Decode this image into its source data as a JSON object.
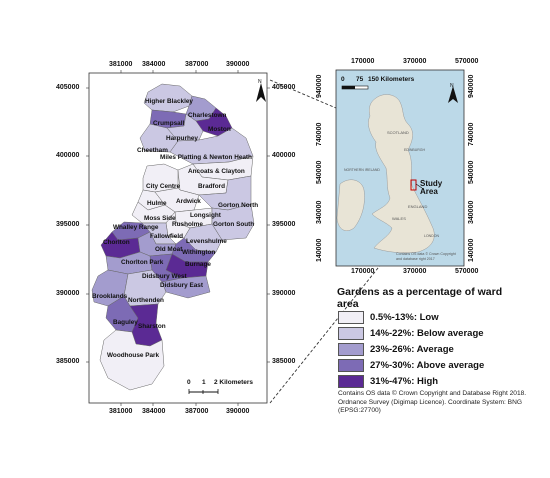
{
  "main_map": {
    "x_ticks": [
      "381000",
      "384000",
      "387000",
      "390000"
    ],
    "y_ticks_left": [
      "405000",
      "400000",
      "395000",
      "390000",
      "385000"
    ],
    "y_ticks_right": [
      "405000",
      "400000",
      "395000",
      "390000",
      "385000"
    ],
    "north_label": "N",
    "scale_labels": [
      "0",
      "1",
      "2 Kilometers"
    ],
    "wards": [
      {
        "name": "Higher Blackley",
        "class": 1
      },
      {
        "name": "Charlestown",
        "class": 2
      },
      {
        "name": "Crumpsall",
        "class": 3
      },
      {
        "name": "Moston",
        "class": 4
      },
      {
        "name": "Harpurhey",
        "class": 1
      },
      {
        "name": "Cheetham",
        "class": 1
      },
      {
        "name": "Miles Platting & Newton Heath",
        "class": 1
      },
      {
        "name": "Ancoats & Clayton",
        "class": 0
      },
      {
        "name": "City Centre",
        "class": 0
      },
      {
        "name": "Bradford",
        "class": 0
      },
      {
        "name": "Hulme",
        "class": 0
      },
      {
        "name": "Ardwick",
        "class": 0
      },
      {
        "name": "Gorton North",
        "class": 1
      },
      {
        "name": "Longsight",
        "class": 0
      },
      {
        "name": "Moss Side",
        "class": 0
      },
      {
        "name": "Rusholme",
        "class": 0
      },
      {
        "name": "Gorton South",
        "class": 1
      },
      {
        "name": "Whalley Range",
        "class": 3
      },
      {
        "name": "Fallowfield",
        "class": 1
      },
      {
        "name": "Chorlton",
        "class": 4
      },
      {
        "name": "Levenshulme",
        "class": 1
      },
      {
        "name": "Old Moat",
        "class": 2
      },
      {
        "name": "Withington",
        "class": 3
      },
      {
        "name": "Chorlton Park",
        "class": 2
      },
      {
        "name": "Burnage",
        "class": 4
      },
      {
        "name": "Didsbury West",
        "class": 3
      },
      {
        "name": "Didsbury East",
        "class": 2
      },
      {
        "name": "Brooklands",
        "class": 2
      },
      {
        "name": "Northenden",
        "class": 1
      },
      {
        "name": "Baguley",
        "class": 3
      },
      {
        "name": "Sharston",
        "class": 4
      },
      {
        "name": "Woodhouse Park",
        "class": 0
      }
    ]
  },
  "inset_map": {
    "x_ticks": [
      "170000",
      "370000",
      "570000"
    ],
    "y_ticks": [
      "940000",
      "740000",
      "540000",
      "340000",
      "140000"
    ],
    "scale_labels": [
      "0",
      "75",
      "150 Kilometers"
    ],
    "north_label": "N",
    "study_area_label": "Study Area",
    "place_labels": [
      "SCOTLAND",
      "NORTHERN IRELAND",
      "ENGLAND",
      "WALES",
      "EDINBURGH",
      "LONDON"
    ],
    "attribution": "Contains OS data © Crown Copyright and database right 2017"
  },
  "legend": {
    "title": "Gardens as a percentage of ward area",
    "items": [
      {
        "label": "0.5%-13%: Low",
        "color": "#f1eff6"
      },
      {
        "label": "14%-22%: Below average",
        "color": "#cbc8e3"
      },
      {
        "label": "23%-26%: Average",
        "color": "#a39cce"
      },
      {
        "label": "27%-30%: Above average",
        "color": "#7d6bb5"
      },
      {
        "label": "31%-47%: High",
        "color": "#5b2a94"
      }
    ]
  },
  "credits": "Contains OS data © Crown Copyright and Database Right 2018. Ordnance Survey (Digimap Licence). Coordinate System: BNG (EPSG:27700)",
  "colors": {
    "sea": "#bcd9e8",
    "land": "#e8e4d6",
    "frame": "#333333"
  }
}
